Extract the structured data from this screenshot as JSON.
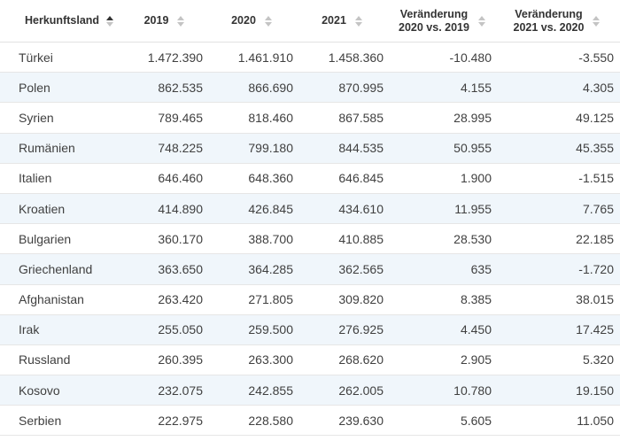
{
  "headers": [
    {
      "label": "Herkunftsland",
      "line2": ""
    },
    {
      "label": "2019",
      "line2": ""
    },
    {
      "label": "2020",
      "line2": ""
    },
    {
      "label": "2021",
      "line2": ""
    },
    {
      "label": "Veränderung",
      "line2": "2020 vs. 2019"
    },
    {
      "label": "Veränderung",
      "line2": "2021 vs. 2020"
    }
  ],
  "sort": {
    "column": "Herkunftsland",
    "direction": "ascending"
  },
  "colors": {
    "row_stripe": "#f0f6fb",
    "text": "#404040",
    "sort_active": "#333333",
    "sort_inactive": "#c4c4c4"
  },
  "rows": [
    {
      "country": "Türkei",
      "y2019": "1.472.390",
      "y2020": "1.461.910",
      "y2021": "1.458.360",
      "chg2020": "-10.480",
      "chg2021": "-3.550"
    },
    {
      "country": "Polen",
      "y2019": "862.535",
      "y2020": "866.690",
      "y2021": "870.995",
      "chg2020": "4.155",
      "chg2021": "4.305"
    },
    {
      "country": "Syrien",
      "y2019": "789.465",
      "y2020": "818.460",
      "y2021": "867.585",
      "chg2020": "28.995",
      "chg2021": "49.125"
    },
    {
      "country": "Rumänien",
      "y2019": "748.225",
      "y2020": "799.180",
      "y2021": "844.535",
      "chg2020": "50.955",
      "chg2021": "45.355"
    },
    {
      "country": "Italien",
      "y2019": "646.460",
      "y2020": "648.360",
      "y2021": "646.845",
      "chg2020": "1.900",
      "chg2021": "-1.515"
    },
    {
      "country": "Kroatien",
      "y2019": "414.890",
      "y2020": "426.845",
      "y2021": "434.610",
      "chg2020": "11.955",
      "chg2021": "7.765"
    },
    {
      "country": "Bulgarien",
      "y2019": "360.170",
      "y2020": "388.700",
      "y2021": "410.885",
      "chg2020": "28.530",
      "chg2021": "22.185"
    },
    {
      "country": "Griechenland",
      "y2019": "363.650",
      "y2020": "364.285",
      "y2021": "362.565",
      "chg2020": "635",
      "chg2021": "-1.720"
    },
    {
      "country": "Afghanistan",
      "y2019": "263.420",
      "y2020": "271.805",
      "y2021": "309.820",
      "chg2020": "8.385",
      "chg2021": "38.015"
    },
    {
      "country": "Irak",
      "y2019": "255.050",
      "y2020": "259.500",
      "y2021": "276.925",
      "chg2020": "4.450",
      "chg2021": "17.425"
    },
    {
      "country": "Russland",
      "y2019": "260.395",
      "y2020": "263.300",
      "y2021": "268.620",
      "chg2020": "2.905",
      "chg2021": "5.320"
    },
    {
      "country": "Kosovo",
      "y2019": "232.075",
      "y2020": "242.855",
      "y2021": "262.005",
      "chg2020": "10.780",
      "chg2021": "19.150"
    },
    {
      "country": "Serbien",
      "y2019": "222.975",
      "y2020": "228.580",
      "y2021": "239.630",
      "chg2020": "5.605",
      "chg2021": "11.050"
    }
  ]
}
